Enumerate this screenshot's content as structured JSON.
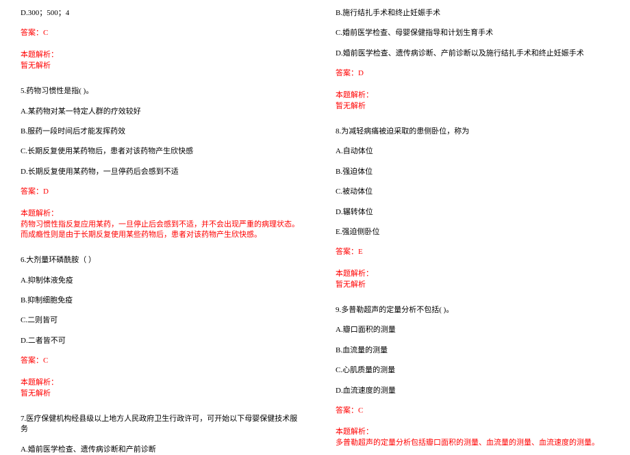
{
  "colors": {
    "text": "#000000",
    "answer": "#ff0000",
    "background": "#ffffff"
  },
  "typography": {
    "font_family": "SimSun",
    "font_size_pt": 9,
    "line_height": 1.4
  },
  "left": {
    "q4_optionD": "D.300；500；4",
    "q4_answer": "答案：C",
    "q4_expl_label": "本题解析：",
    "q4_expl_text": "暂无解析",
    "q5_stem": "5.药物习惯性是指( )。",
    "q5_A": "A.某药物对某一特定人群的疗效较好",
    "q5_B": "B.服药一段时间后才能发挥药效",
    "q5_C": "C.长期反复使用某药物后，患者对该药物产生欣快感",
    "q5_D": "D.长期反复使用某药物，一旦停药后会感到不适",
    "q5_answer": "答案：D",
    "q5_expl_label": "本题解析：",
    "q5_expl_text": "药物习惯性指反复应用某药，一旦停止后会感到不适，并不会出现严重的病理状态。而成瘾性则是由于长期反复使用某些药物后，患者对该药物产生欣快感。",
    "q6_stem": "6.大剂量环磷酰胺（  ）",
    "q6_A": "A.抑制体液免疫",
    "q6_B": "B.抑制细胞免疫",
    "q6_C": "C.二则皆可",
    "q6_D": "D.二者皆不可",
    "q6_answer": "答案：C",
    "q6_expl_label": "本题解析：",
    "q6_expl_text": "暂无解析",
    "q7_stem": "7.医疗保健机构经县级以上地方人民政府卫生行政许可，可开始以下母婴保健技术服务",
    "q7_A": "A.婚前医学检查、遗传病诊断和产前诊断"
  },
  "right": {
    "q7_B": "B.施行结扎手术和终止妊娠手术",
    "q7_C": "C.婚前医学检查、母婴保健指导和计划生育手术",
    "q7_D": "D.婚前医学检查、遗传病诊断、产前诊断以及施行结扎手术和终止妊娠手术",
    "q7_answer": "答案：D",
    "q7_expl_label": "本题解析：",
    "q7_expl_text": "暂无解析",
    "q8_stem": "8.为减轻病痛被迫采取的患侧卧位，称为",
    "q8_A": "A.自动体位",
    "q8_B": "B.强迫体位",
    "q8_C": "C.被动体位",
    "q8_D": "D.辗转体位",
    "q8_E": "E.强迫侧卧位",
    "q8_answer": "答案：E",
    "q8_expl_label": "本题解析：",
    "q8_expl_text": "暂无解析",
    "q9_stem": "9.多普勒超声的定量分析不包括( )。",
    "q9_A": "A.瓣口面积的测量",
    "q9_B": "B.血流量的测量",
    "q9_C": "C.心肌质量的测量",
    "q9_D": "D.血流速度的测量",
    "q9_answer": "答案：C",
    "q9_expl_label": "本题解析：",
    "q9_expl_text": "多普勒超声的定量分析包括瓣口面积的测量、血流量的测量、血流速度的测量。"
  }
}
